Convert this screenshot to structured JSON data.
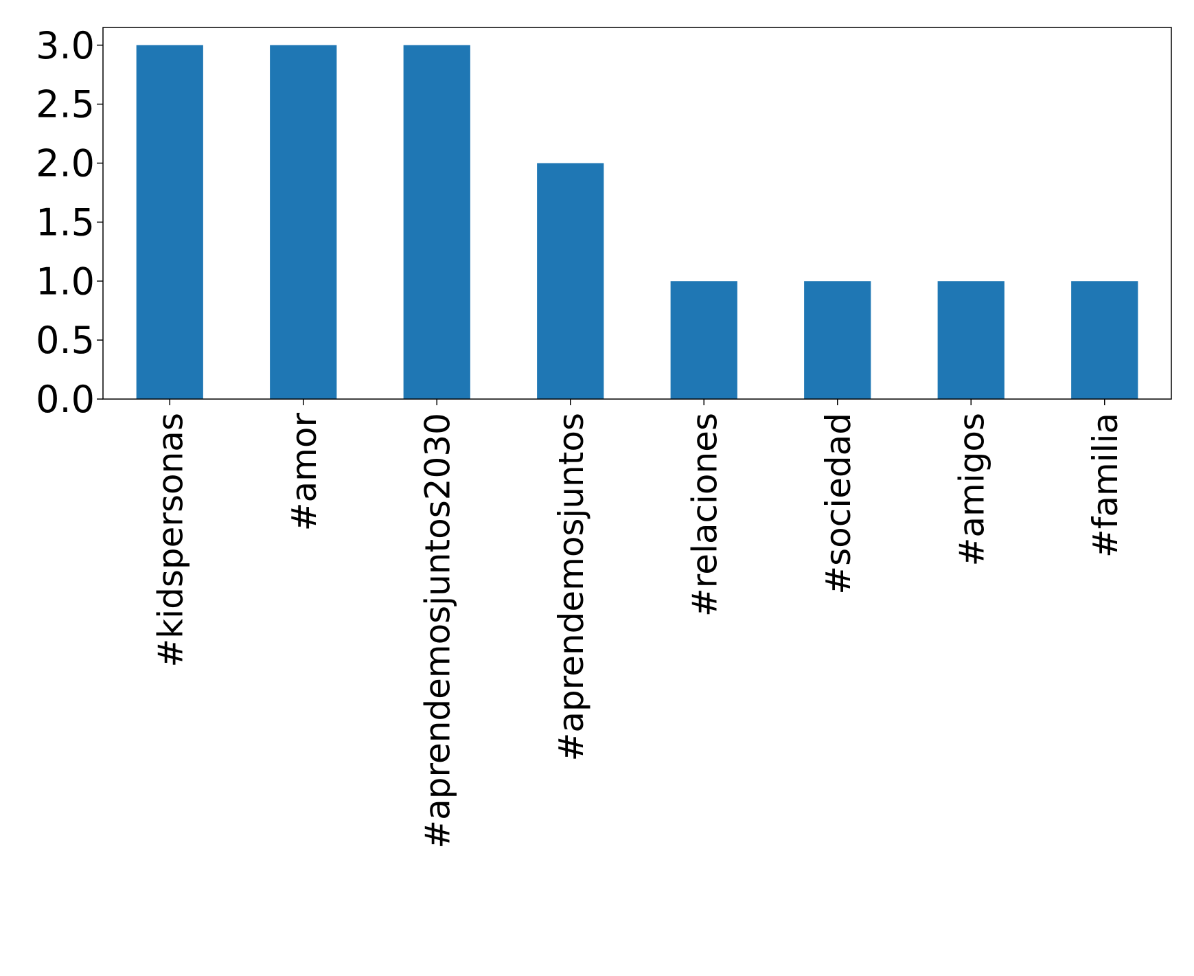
{
  "chart_data": {
    "type": "bar",
    "categories": [
      "#kidspersonas",
      "#amor",
      "#aprendemosjuntos2030",
      "#aprendemosjuntos",
      "#relaciones",
      "#sociedad",
      "#amigos",
      "#familia"
    ],
    "values": [
      3,
      3,
      3,
      2,
      1,
      1,
      1,
      1
    ],
    "yticks": [
      "0.0",
      "0.5",
      "1.0",
      "1.5",
      "2.0",
      "2.5",
      "3.0"
    ],
    "ylim": [
      0,
      3.15
    ],
    "grid": false,
    "bar_color": "#1f77b4"
  }
}
